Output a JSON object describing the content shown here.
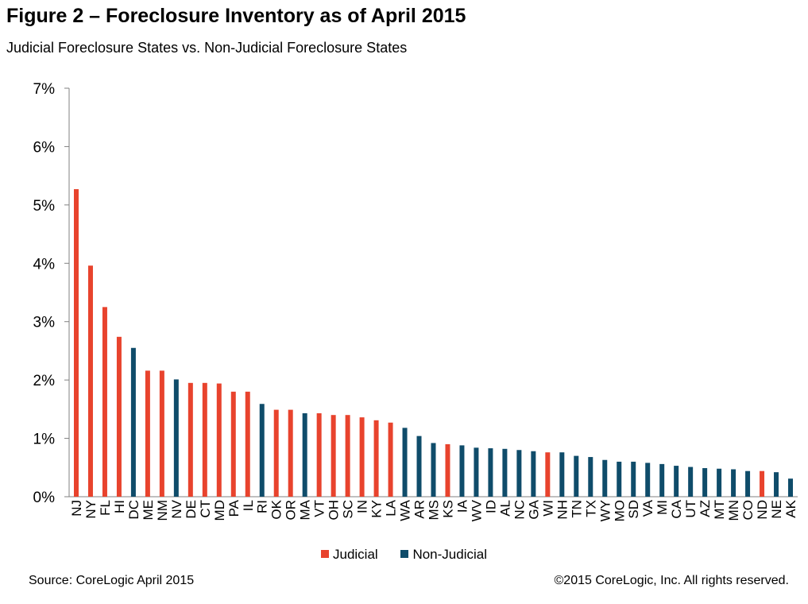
{
  "header": {
    "title": "Figure 2 – Foreclosure Inventory as of April 2015",
    "subtitle": "Judicial Foreclosure States vs. Non-Judicial Foreclosure States"
  },
  "footer": {
    "source": "Source: CoreLogic  April 2015",
    "copyright": "©2015 CoreLogic, Inc.  All rights reserved."
  },
  "colors": {
    "judicial": "#e8432d",
    "non_judicial": "#0f4c6a",
    "axis": "#808080"
  },
  "legend": [
    {
      "label": "Judicial",
      "color": "#e8432d"
    },
    {
      "label": "Non-Judicial",
      "color": "#0f4c6a"
    }
  ],
  "chart_data": {
    "type": "bar",
    "title": "Figure 2 – Foreclosure Inventory as of April 2015",
    "subtitle": "Judicial Foreclosure States vs. Non-Judicial Foreclosure States",
    "xlabel": "",
    "ylabel": "",
    "ylim": [
      0,
      7
    ],
    "yticks": [
      "0%",
      "1%",
      "2%",
      "3%",
      "4%",
      "5%",
      "6%",
      "7%"
    ],
    "grid": false,
    "legend_position": "bottom",
    "categories": [
      "NJ",
      "NY",
      "FL",
      "HI",
      "DC",
      "ME",
      "NM",
      "NV",
      "DE",
      "CT",
      "MD",
      "PA",
      "IL",
      "RI",
      "OK",
      "OR",
      "MA",
      "VT",
      "OH",
      "SC",
      "IN",
      "KY",
      "LA",
      "WA",
      "AR",
      "MS",
      "KS",
      "IA",
      "WV",
      "ID",
      "AL",
      "NC",
      "GA",
      "WI",
      "NH",
      "TN",
      "TX",
      "WY",
      "MO",
      "SD",
      "VA",
      "MI",
      "CA",
      "UT",
      "AZ",
      "MT",
      "MN",
      "CO",
      "ND",
      "NE",
      "AK"
    ],
    "values": [
      5.27,
      3.96,
      3.25,
      2.74,
      2.55,
      2.16,
      2.16,
      2.01,
      1.95,
      1.95,
      1.94,
      1.8,
      1.8,
      1.59,
      1.49,
      1.49,
      1.43,
      1.43,
      1.4,
      1.4,
      1.36,
      1.31,
      1.27,
      1.18,
      1.04,
      0.92,
      0.9,
      0.88,
      0.84,
      0.83,
      0.82,
      0.8,
      0.78,
      0.76,
      0.76,
      0.7,
      0.68,
      0.63,
      0.6,
      0.6,
      0.58,
      0.56,
      0.53,
      0.51,
      0.49,
      0.48,
      0.47,
      0.44,
      0.44,
      0.42,
      0.31
    ],
    "groups": [
      "Judicial",
      "Judicial",
      "Judicial",
      "Judicial",
      "Non-Judicial",
      "Judicial",
      "Judicial",
      "Non-Judicial",
      "Judicial",
      "Judicial",
      "Judicial",
      "Judicial",
      "Judicial",
      "Non-Judicial",
      "Judicial",
      "Judicial",
      "Non-Judicial",
      "Judicial",
      "Judicial",
      "Judicial",
      "Judicial",
      "Judicial",
      "Judicial",
      "Non-Judicial",
      "Non-Judicial",
      "Non-Judicial",
      "Judicial",
      "Non-Judicial",
      "Non-Judicial",
      "Non-Judicial",
      "Non-Judicial",
      "Non-Judicial",
      "Non-Judicial",
      "Judicial",
      "Non-Judicial",
      "Non-Judicial",
      "Non-Judicial",
      "Non-Judicial",
      "Non-Judicial",
      "Non-Judicial",
      "Non-Judicial",
      "Non-Judicial",
      "Non-Judicial",
      "Non-Judicial",
      "Non-Judicial",
      "Non-Judicial",
      "Non-Judicial",
      "Non-Judicial",
      "Judicial",
      "Non-Judicial",
      "Non-Judicial"
    ]
  }
}
